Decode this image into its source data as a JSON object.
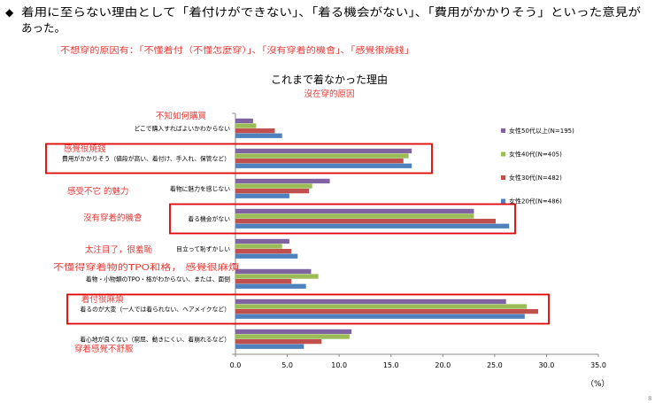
{
  "header": {
    "bullet": "◆",
    "line1": "着用に至らない理由として「着付けができない」、「着る機会がない」、「費用がかかりそう」といった意見が",
    "line2": "あった。",
    "subtitle_red": "不想穿的原因有：「不懂着付（不懂怎麼穿）」、「沒有穿着的機會」、「感覺很燒錢」"
  },
  "chart_data": {
    "type": "bar",
    "orientation": "horizontal",
    "title": "これまで着なかった理由",
    "subtitle": "沒在穿的原因",
    "categories": [
      "どこで購入すればよいかわからない",
      "費用がかかりそう（値段が高い、着付け、手入れ、保管など）",
      "着物に魅力を感じない",
      "着る機会がない",
      "目立って恥ずかしい",
      "着物・小物類のTPO・格がわからない、または、面倒",
      "着るのが大変（一人では着られない、ヘアメイクなど）",
      "着心地が良くない（窮屈、動きにくい、着崩れるなど）"
    ],
    "series": [
      {
        "name": "女性50代以上(N=195)",
        "color": "#8064a2",
        "values": [
          1.7,
          17.0,
          9.1,
          23.0,
          5.2,
          7.3,
          26.1,
          11.2
        ]
      },
      {
        "name": "女性40代(N=405)",
        "color": "#9bbb59",
        "values": [
          2.0,
          16.7,
          7.4,
          23.0,
          4.5,
          8.0,
          28.1,
          11.0
        ]
      },
      {
        "name": "女性30代(N=482)",
        "color": "#c0504d",
        "values": [
          3.8,
          16.2,
          7.1,
          25.1,
          5.4,
          5.4,
          29.2,
          8.3
        ]
      },
      {
        "name": "女性20代(N=486)",
        "color": "#4f81bd",
        "values": [
          4.5,
          17.0,
          5.2,
          26.4,
          6.0,
          6.8,
          27.9,
          6.6
        ]
      }
    ],
    "xlim": [
      0,
      35
    ],
    "xticks": [
      0,
      5,
      10,
      15,
      20,
      25,
      30,
      35
    ],
    "xtick_labels": [
      "0.0",
      "5.0",
      "10.0",
      "15.0",
      "20.0",
      "25.0",
      "30.0",
      "35.0"
    ],
    "xlabel": "（%）",
    "annotations": [
      "不知如何購買",
      "感覺很燒錢",
      "感受不它 的魅力",
      "沒有穿着的機會",
      "太注目了，很羞恥",
      "不懂得穿着物的TPO和格， 感覺很麻煩",
      "着付很麻煩",
      "穿着感覺不舒服"
    ],
    "highlighted_categories": [
      1,
      3,
      6
    ]
  },
  "page_number": "8"
}
